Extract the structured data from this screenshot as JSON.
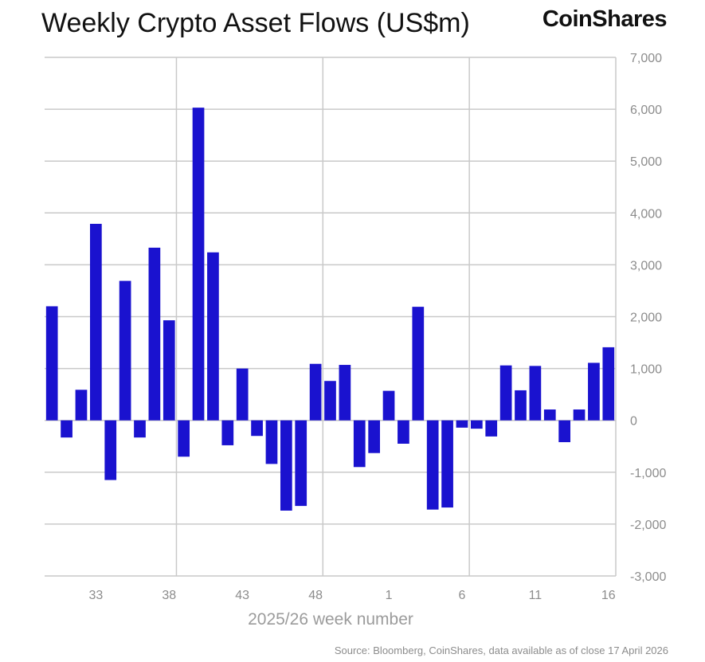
{
  "chart_data": {
    "type": "bar",
    "title": "Weekly Crypto Asset Flows (US$m)",
    "brand": "CoinShares",
    "xlabel": "2025/26 week number",
    "ylabel": "",
    "source": "Source: Bloomberg, CoinShares, data available as of close 17 April 2026",
    "ylim": [
      -3000,
      7000
    ],
    "yticks": [
      7000,
      6000,
      5000,
      4000,
      3000,
      2000,
      1000,
      0,
      -1000,
      -2000,
      -3000
    ],
    "ytick_labels": [
      "7,000",
      "6,000",
      "5,000",
      "4,000",
      "3,000",
      "2,000",
      "1,000",
      "0",
      "-1,000",
      "-2,000",
      "-3,000"
    ],
    "xtick_labels": [
      "33",
      "38",
      "43",
      "48",
      "1",
      "6",
      "11",
      "16"
    ],
    "xtick_indices": [
      3,
      8,
      13,
      18,
      23,
      28,
      33,
      38
    ],
    "vertical_gridlines_after_index": [
      8.5,
      18.5,
      28.5
    ],
    "grid": true,
    "bar_color": "#1a12cf",
    "categories": [
      "30",
      "31",
      "32",
      "33",
      "34",
      "35",
      "36",
      "37",
      "38",
      "39",
      "40",
      "41",
      "42",
      "43",
      "44",
      "45",
      "46",
      "47",
      "48",
      "49",
      "50",
      "51",
      "52",
      "1",
      "2",
      "3",
      "4",
      "5",
      "6",
      "7",
      "8",
      "9",
      "10",
      "11",
      "12",
      "13",
      "14",
      "15",
      "16"
    ],
    "values": [
      2200,
      -330,
      590,
      3790,
      -1150,
      2690,
      -330,
      3330,
      1930,
      -700,
      6030,
      3240,
      -480,
      1000,
      -300,
      -840,
      -1740,
      -1650,
      1090,
      760,
      1070,
      -900,
      -630,
      570,
      -450,
      2190,
      -1720,
      -1680,
      -140,
      -160,
      -310,
      1060,
      580,
      1050,
      210,
      -420,
      210,
      1110,
      1410
    ]
  }
}
